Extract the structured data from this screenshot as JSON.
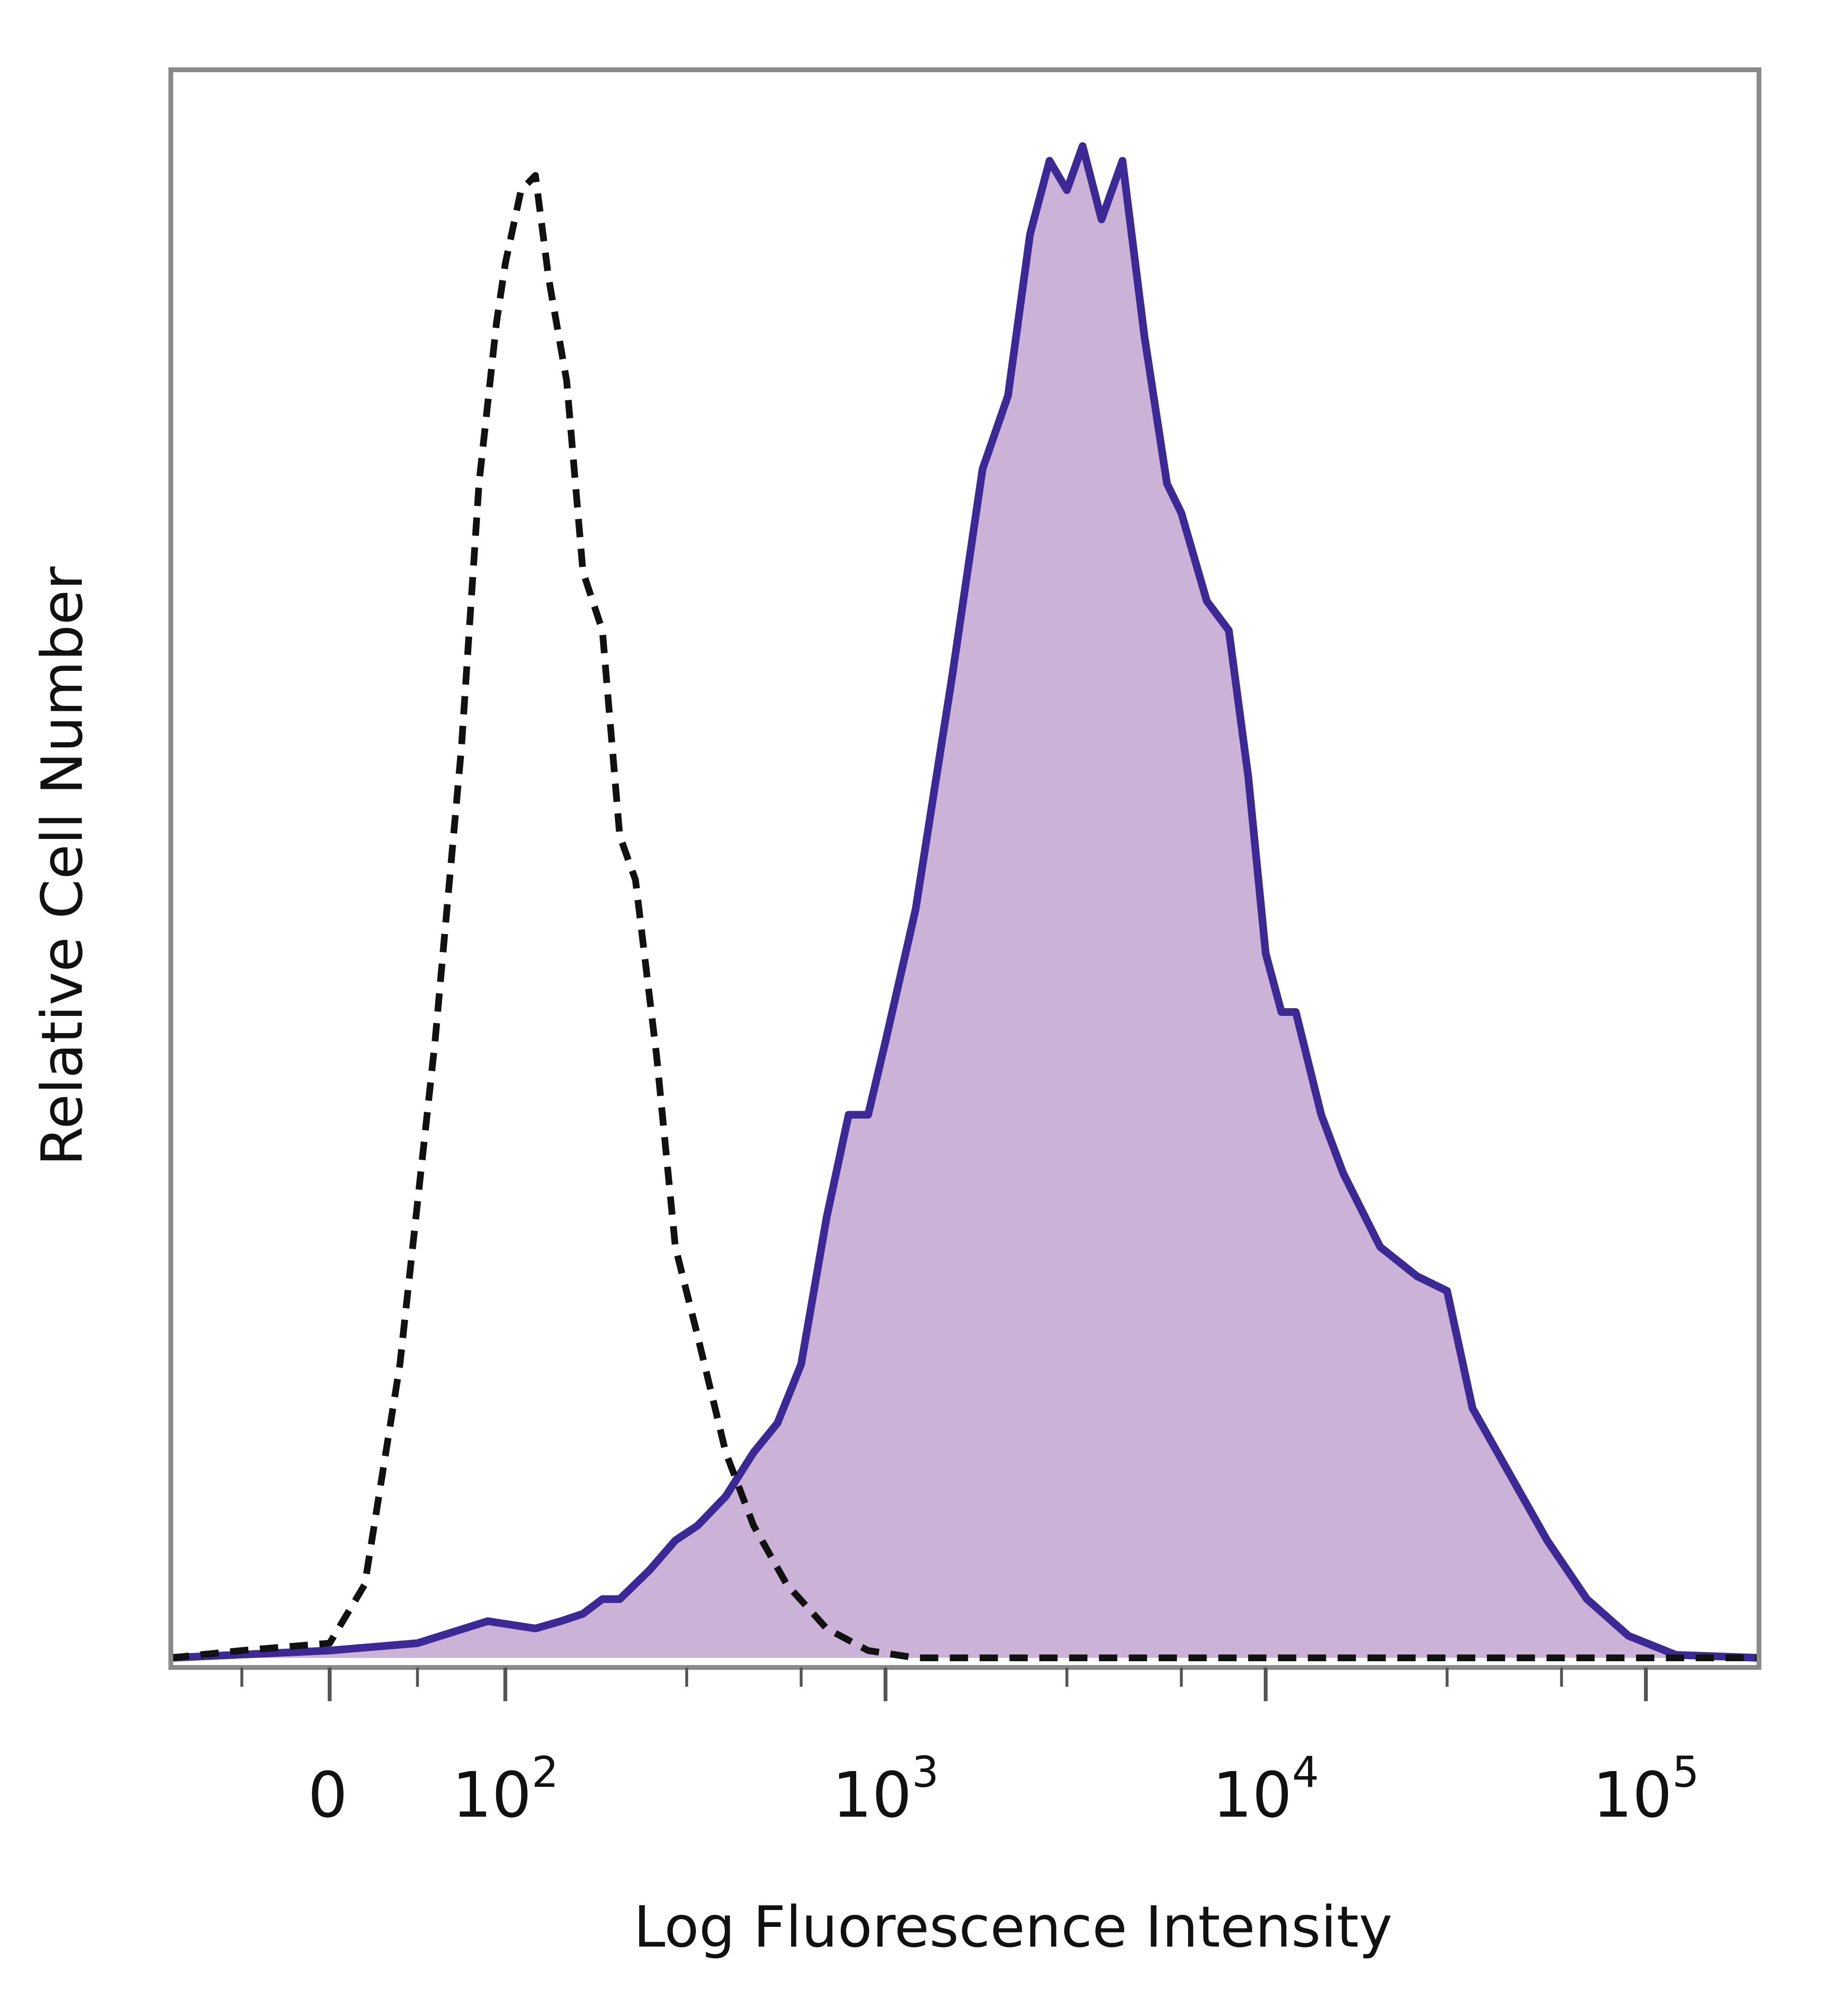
{
  "chart_data": {
    "type": "area",
    "title": "",
    "xlabel": "Log Fluorescence Intensity",
    "ylabel": "Relative Cell Number",
    "x_scale": "biexponential (log above 10^2, linear near 0)",
    "xlim": [
      -100,
      250000
    ],
    "ylim": [
      0,
      1.08
    ],
    "grid": false,
    "legend": "none",
    "x_ticks": [
      {
        "value": 0,
        "base": "0",
        "exp": ""
      },
      {
        "value": 100,
        "base": "10",
        "exp": "2"
      },
      {
        "value": 1000,
        "base": "10",
        "exp": "3"
      },
      {
        "value": 10000,
        "base": "10",
        "exp": "4"
      },
      {
        "value": 100000,
        "base": "10",
        "exp": "5"
      }
    ],
    "series": [
      {
        "style": "dashed",
        "color": "#111111",
        "fill": "none",
        "points": [
          [
            -100,
            0
          ],
          [
            -50,
            0.005
          ],
          [
            0,
            0.01
          ],
          [
            20,
            0.05
          ],
          [
            40,
            0.2
          ],
          [
            60,
            0.42
          ],
          [
            75,
            0.62
          ],
          [
            85,
            0.8
          ],
          [
            95,
            0.91
          ],
          [
            100,
            0.95
          ],
          [
            110,
            1.0
          ],
          [
            120,
            1.01
          ],
          [
            130,
            0.94
          ],
          [
            145,
            0.87
          ],
          [
            160,
            0.74
          ],
          [
            180,
            0.7
          ],
          [
            200,
            0.56
          ],
          [
            220,
            0.53
          ],
          [
            250,
            0.41
          ],
          [
            280,
            0.28
          ],
          [
            320,
            0.22
          ],
          [
            380,
            0.14
          ],
          [
            450,
            0.09
          ],
          [
            550,
            0.05
          ],
          [
            700,
            0.02
          ],
          [
            900,
            0.005
          ],
          [
            1200,
            0.0
          ],
          [
            250000,
            0.0
          ]
        ]
      },
      {
        "style": "solid",
        "color": "#3d2996",
        "fill": "#cbb3d8",
        "points": [
          [
            -100,
            0
          ],
          [
            0,
            0.005
          ],
          [
            50,
            0.01
          ],
          [
            90,
            0.025
          ],
          [
            120,
            0.02
          ],
          [
            140,
            0.025
          ],
          [
            160,
            0.03
          ],
          [
            180,
            0.04
          ],
          [
            200,
            0.04
          ],
          [
            240,
            0.06
          ],
          [
            280,
            0.08
          ],
          [
            320,
            0.09
          ],
          [
            380,
            0.11
          ],
          [
            450,
            0.14
          ],
          [
            520,
            0.16
          ],
          [
            600,
            0.2
          ],
          [
            700,
            0.3
          ],
          [
            800,
            0.37
          ],
          [
            900,
            0.37
          ],
          [
            1000,
            0.42
          ],
          [
            1200,
            0.51
          ],
          [
            1500,
            0.67
          ],
          [
            1800,
            0.81
          ],
          [
            2100,
            0.86
          ],
          [
            2400,
            0.97
          ],
          [
            2700,
            1.02
          ],
          [
            3000,
            1.0
          ],
          [
            3300,
            1.03
          ],
          [
            3700,
            0.98
          ],
          [
            4200,
            1.02
          ],
          [
            4800,
            0.9
          ],
          [
            5500,
            0.8
          ],
          [
            6000,
            0.78
          ],
          [
            7000,
            0.72
          ],
          [
            8000,
            0.7
          ],
          [
            9000,
            0.6
          ],
          [
            10000,
            0.48
          ],
          [
            11000,
            0.44
          ],
          [
            12000,
            0.44
          ],
          [
            14000,
            0.37
          ],
          [
            16000,
            0.33
          ],
          [
            20000,
            0.28
          ],
          [
            25000,
            0.26
          ],
          [
            30000,
            0.25
          ],
          [
            35000,
            0.17
          ],
          [
            45000,
            0.12
          ],
          [
            55000,
            0.08
          ],
          [
            70000,
            0.04
          ],
          [
            90000,
            0.015
          ],
          [
            120000,
            0.002
          ],
          [
            250000,
            0.0
          ]
        ]
      }
    ]
  }
}
